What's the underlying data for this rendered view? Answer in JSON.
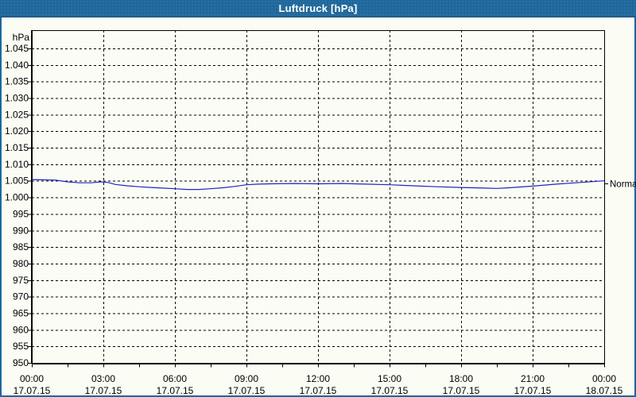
{
  "window": {
    "title": "Luftdruck [hPa]"
  },
  "colors": {
    "titlebar_bg": "#20689b",
    "window_border": "#1e679b",
    "title_text": "#ffffff",
    "background": "#fbfdf5",
    "grid": "#000000",
    "axis_text": "#000000",
    "line": "#2323c8"
  },
  "chart_data": {
    "type": "line",
    "title": "Luftdruck [hPa]",
    "ylabel": "hPa",
    "xlabel": "",
    "ylim": [
      950,
      1050.5
    ],
    "ytick_step": 5,
    "grid": true,
    "legend_position": "none",
    "yticks": [
      {
        "value": 950,
        "label": "950"
      },
      {
        "value": 955,
        "label": "955"
      },
      {
        "value": 960,
        "label": "960"
      },
      {
        "value": 965,
        "label": "965"
      },
      {
        "value": 970,
        "label": "970"
      },
      {
        "value": 975,
        "label": "975"
      },
      {
        "value": 980,
        "label": "980"
      },
      {
        "value": 985,
        "label": "985"
      },
      {
        "value": 990,
        "label": "990"
      },
      {
        "value": 995,
        "label": "995"
      },
      {
        "value": 1000,
        "label": "1.000"
      },
      {
        "value": 1005,
        "label": "1.005"
      },
      {
        "value": 1010,
        "label": "1.010"
      },
      {
        "value": 1015,
        "label": "1.015"
      },
      {
        "value": 1020,
        "label": "1.020"
      },
      {
        "value": 1025,
        "label": "1.025"
      },
      {
        "value": 1030,
        "label": "1.030"
      },
      {
        "value": 1035,
        "label": "1.035"
      },
      {
        "value": 1040,
        "label": "1.040"
      },
      {
        "value": 1045,
        "label": "1.045"
      }
    ],
    "x_axis": {
      "range_hours": [
        0,
        24
      ],
      "minor_tick_interval_hours": 1.5,
      "major_ticks": [
        {
          "hour": 0,
          "time": "00:00",
          "date": "17.07.15"
        },
        {
          "hour": 3,
          "time": "03:00",
          "date": "17.07.15"
        },
        {
          "hour": 6,
          "time": "06:00",
          "date": "17.07.15"
        },
        {
          "hour": 9,
          "time": "09:00",
          "date": "17.07.15"
        },
        {
          "hour": 12,
          "time": "12:00",
          "date": "17.07.15"
        },
        {
          "hour": 15,
          "time": "15:00",
          "date": "17.07.15"
        },
        {
          "hour": 18,
          "time": "18:00",
          "date": "17.07.15"
        },
        {
          "hour": 21,
          "time": "21:00",
          "date": "17.07.15"
        },
        {
          "hour": 24,
          "time": "00:00",
          "date": "18.07.15"
        }
      ]
    },
    "normal_marker": {
      "label": "Normal",
      "value": 1004.2
    },
    "series": [
      {
        "name": "Luftdruck",
        "unit": "hPa",
        "color": "#2323c8",
        "points": [
          [
            0,
            1005.4
          ],
          [
            0.5,
            1005.3
          ],
          [
            1,
            1005.2
          ],
          [
            1.5,
            1004.7
          ],
          [
            2,
            1004.4
          ],
          [
            2.5,
            1004.4
          ],
          [
            2.9,
            1004.7
          ],
          [
            3.2,
            1004.5
          ],
          [
            3.5,
            1003.9
          ],
          [
            4,
            1003.5
          ],
          [
            4.5,
            1003.2
          ],
          [
            5,
            1003.0
          ],
          [
            5.5,
            1002.8
          ],
          [
            6,
            1002.6
          ],
          [
            6.5,
            1002.4
          ],
          [
            7,
            1002.4
          ],
          [
            7.5,
            1002.6
          ],
          [
            8,
            1002.9
          ],
          [
            8.5,
            1003.3
          ],
          [
            9,
            1003.8
          ],
          [
            9.5,
            1004.0
          ],
          [
            10,
            1004.1
          ],
          [
            11,
            1004.2
          ],
          [
            12,
            1004.1
          ],
          [
            13,
            1004.2
          ],
          [
            14,
            1004.0
          ],
          [
            15,
            1003.8
          ],
          [
            16,
            1003.5
          ],
          [
            17,
            1003.2
          ],
          [
            18,
            1003.0
          ],
          [
            19,
            1002.8
          ],
          [
            19.5,
            1002.7
          ],
          [
            20,
            1002.9
          ],
          [
            21,
            1003.4
          ],
          [
            22,
            1004.0
          ],
          [
            23,
            1004.5
          ],
          [
            24,
            1005.0
          ]
        ]
      }
    ]
  }
}
